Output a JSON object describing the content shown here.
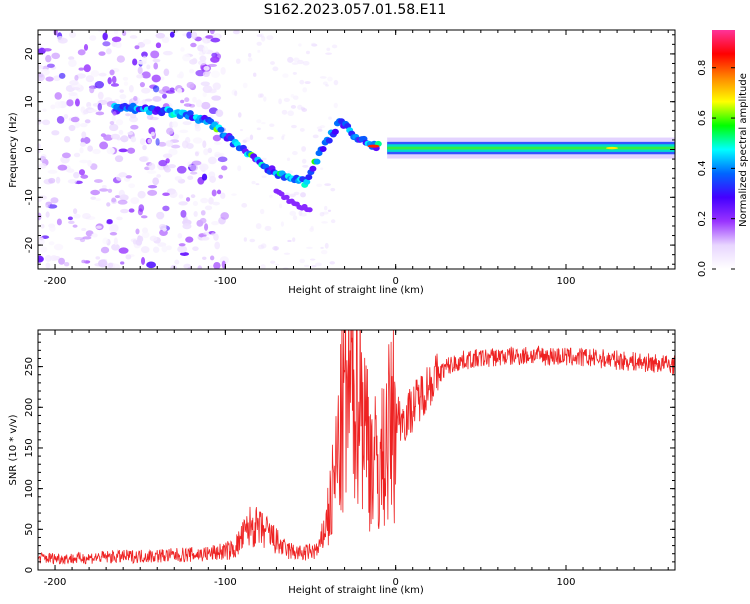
{
  "title": "S162.2023.057.01.58.E11",
  "chart_data": [
    {
      "type": "heatmap",
      "xlabel": "Height of straight line (km)",
      "ylabel": "Frequency (Hz)",
      "xlim": [
        -210,
        164
      ],
      "ylim": [
        -25,
        25
      ],
      "xticks": [
        -200,
        -100,
        0,
        100
      ],
      "yticks": [
        -20,
        -10,
        0,
        10,
        20
      ],
      "colorbar": {
        "label": "Normalized spectral amplitude",
        "range": [
          0,
          0.95
        ],
        "ticks": [
          "0.0",
          "0.2",
          "0.4",
          "0.6",
          "0.8"
        ],
        "colormap": [
          "#ffffff",
          "#e8d5ff",
          "#9933ff",
          "#4400ff",
          "#0066ff",
          "#00ffff",
          "#00ff00",
          "#ffff00",
          "#ff8800",
          "#ff0000",
          "#ff3399"
        ]
      },
      "ridge": {
        "x": [
          -165,
          -150,
          -135,
          -120,
          -110,
          -100,
          -90,
          -80,
          -70,
          -60,
          -52,
          -45,
          -38,
          -32,
          -25,
          -15,
          -5,
          0,
          10,
          50,
          100,
          164
        ],
        "y": [
          9,
          8.5,
          8,
          7,
          6,
          3,
          0,
          -3,
          -5,
          -6,
          -7,
          -1,
          3,
          6,
          3,
          1,
          0.5,
          1,
          0.5,
          0.5,
          0.5,
          0.5
        ]
      },
      "carrier_frequency_hz": 0.3,
      "notes_source": "strong narrow-band signal from about -10 km upward; scattered noise below -100 km"
    },
    {
      "type": "line",
      "xlabel": "Height of straight line (km)",
      "ylabel": "SNR (10 * v/v)",
      "xlim": [
        -210,
        164
      ],
      "ylim": [
        0,
        295
      ],
      "xticks": [
        -200,
        -100,
        0,
        100
      ],
      "yticks": [
        0,
        50,
        100,
        150,
        200,
        250
      ],
      "color": "#ee2222",
      "series": [
        {
          "x": [
            -210,
            -190,
            -170,
            -150,
            -130,
            -110,
            -95,
            -85,
            -75,
            -65,
            -55,
            -45,
            -38,
            -34,
            -30,
            -26,
            -22,
            -18,
            -14,
            -10,
            -5,
            0,
            5,
            10,
            15,
            20,
            30,
            40,
            60,
            80,
            100,
            120,
            140,
            164
          ],
          "y": [
            15,
            14,
            16,
            17,
            18,
            20,
            25,
            55,
            45,
            25,
            20,
            25,
            80,
            140,
            200,
            230,
            250,
            180,
            140,
            120,
            160,
            190,
            185,
            200,
            215,
            230,
            250,
            258,
            262,
            264,
            262,
            260,
            256,
            252
          ]
        }
      ]
    }
  ]
}
